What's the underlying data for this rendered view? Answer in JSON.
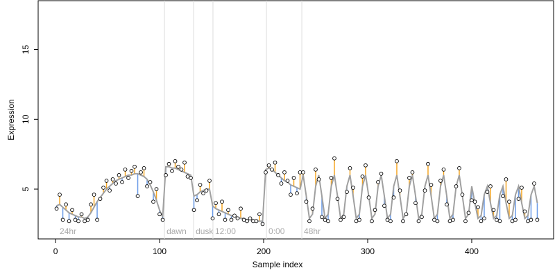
{
  "chart_data": {
    "type": "scatter",
    "xlabel": "Sample index",
    "ylabel": "Expression",
    "xlim": [
      -16.7,
      478.7
    ],
    "ylim": [
      1.43,
      18.5
    ],
    "xticks": [
      0,
      100,
      200,
      300,
      400
    ],
    "yticks": [
      5,
      10,
      15
    ],
    "annotations": [
      {
        "x": 2,
        "label": "24hr",
        "line": false
      },
      {
        "x": 104.7,
        "label": "dawn",
        "line": true
      },
      {
        "x": 132.7,
        "label": "dusk",
        "line": true
      },
      {
        "x": 151.3,
        "label": "12:00",
        "line": true
      },
      {
        "x": 202.7,
        "label": "0:00",
        "line": true
      },
      {
        "x": 236.7,
        "label": "48hr",
        "line": true
      }
    ],
    "residual_colors": [
      "#f5a623",
      "#6a9be8"
    ],
    "x": [
      1,
      4,
      7,
      10,
      13,
      16,
      19,
      22,
      25,
      28,
      31,
      34,
      37,
      40,
      43,
      46,
      49,
      52,
      55,
      58,
      61,
      64,
      67,
      70,
      73,
      76,
      79,
      82,
      85,
      88,
      91,
      94,
      97,
      100,
      103,
      106,
      109,
      112,
      115,
      118,
      121,
      124,
      127,
      130,
      133,
      136,
      139,
      142,
      145,
      148,
      151,
      154,
      157,
      160,
      163,
      166,
      169,
      172,
      175,
      178,
      181,
      184,
      187,
      190,
      193,
      196,
      199,
      202,
      205,
      208,
      211,
      214,
      217,
      220,
      223,
      226,
      229,
      232,
      235,
      238,
      241,
      244,
      247,
      250,
      253,
      256,
      259,
      262,
      265,
      268,
      271,
      274,
      277,
      280,
      283,
      286,
      289,
      292,
      295,
      298,
      301,
      304,
      307,
      310,
      313,
      316,
      319,
      322,
      325,
      328,
      331,
      334,
      337,
      340,
      343,
      346,
      349,
      352,
      355,
      358,
      361,
      364,
      367,
      370,
      373,
      376,
      379,
      382,
      385,
      388,
      391,
      394,
      397,
      400,
      403,
      406,
      409,
      412,
      415,
      418,
      421,
      424,
      427,
      430,
      433,
      436,
      439,
      442,
      445,
      448,
      451,
      454,
      457,
      460,
      463
    ],
    "fit": {
      "color": "#a0a0a0",
      "values": [
        3.8,
        3.9,
        3.7,
        3.5,
        3.3,
        3.2,
        3.1,
        3.0,
        3.0,
        2.9,
        3.0,
        3.3,
        3.7,
        4.1,
        4.4,
        4.7,
        5.0,
        5.2,
        5.4,
        5.6,
        5.7,
        5.8,
        5.9,
        6.0,
        6.0,
        6.1,
        6.1,
        6.0,
        5.9,
        5.7,
        5.3,
        4.8,
        4.2,
        3.5,
        3.0,
        6.6,
        6.6,
        6.5,
        6.5,
        6.4,
        6.3,
        6.2,
        6.1,
        6.0,
        4.5,
        4.6,
        4.8,
        4.9,
        5.0,
        5.0,
        3.8,
        3.6,
        3.5,
        3.4,
        3.3,
        3.2,
        3.1,
        3.0,
        3.0,
        2.9,
        2.9,
        2.8,
        2.8,
        2.8,
        2.7,
        2.7,
        2.7,
        6.4,
        6.5,
        6.4,
        6.2,
        6.0,
        5.8,
        5.6,
        5.5,
        5.3,
        5.2,
        5.1,
        5.0,
        6.0,
        4.5,
        2.9,
        3.2,
        5.2,
        6.0,
        4.5,
        2.9,
        3.2,
        5.2,
        6.0,
        4.5,
        2.9,
        3.2,
        5.2,
        6.0,
        4.5,
        2.9,
        3.2,
        5.2,
        6.0,
        4.5,
        2.9,
        3.2,
        5.2,
        6.0,
        4.5,
        2.9,
        3.2,
        5.2,
        6.0,
        4.5,
        2.9,
        3.2,
        5.2,
        6.0,
        4.5,
        2.9,
        3.2,
        5.2,
        6.0,
        4.5,
        2.9,
        3.2,
        5.2,
        6.0,
        4.5,
        2.9,
        3.2,
        5.2,
        6.0,
        4.5,
        2.9,
        3.2,
        5.2,
        4.0,
        2.9,
        3.1,
        4.6,
        5.2,
        4.0,
        2.9,
        3.1,
        4.6,
        5.2,
        4.0,
        2.9,
        3.1,
        4.6,
        5.2,
        4.0,
        2.9,
        3.1,
        4.6,
        5.2,
        4.0
      ]
    },
    "observed": {
      "values": [
        3.6,
        4.6,
        2.8,
        3.9,
        2.7,
        3.5,
        2.8,
        2.7,
        3.2,
        2.7,
        2.8,
        3.9,
        4.6,
        2.8,
        4.3,
        5.1,
        5.6,
        4.9,
        5.7,
        5.4,
        6.0,
        5.5,
        6.4,
        5.8,
        6.3,
        6.6,
        4.5,
        6.2,
        6.5,
        5.2,
        5.5,
        4.1,
        5.0,
        3.2,
        2.8,
        6.0,
        6.8,
        6.3,
        7.0,
        6.6,
        6.4,
        6.9,
        5.9,
        5.8,
        3.5,
        4.2,
        5.3,
        4.7,
        4.9,
        5.6,
        2.9,
        4.0,
        3.2,
        4.1,
        2.8,
        3.5,
        2.8,
        3.1,
        2.9,
        3.6,
        2.8,
        2.7,
        2.9,
        2.7,
        2.7,
        3.2,
        2.5,
        6.2,
        6.7,
        6.4,
        6.9,
        6.0,
        5.4,
        6.2,
        5.6,
        4.6,
        5.8,
        4.7,
        6.2,
        6.2,
        4.1,
        2.7,
        3.6,
        6.4,
        5.7,
        3.0,
        2.8,
        2.7,
        5.8,
        7.2,
        4.3,
        2.8,
        3.0,
        4.8,
        6.5,
        5.1,
        2.7,
        2.8,
        5.9,
        6.7,
        4.4,
        2.7,
        3.5,
        5.5,
        6.1,
        3.8,
        2.8,
        2.7,
        4.4,
        7.0,
        4.9,
        2.7,
        3.2,
        5.8,
        6.2,
        4.0,
        2.7,
        3.0,
        4.9,
        6.8,
        5.3,
        2.8,
        2.7,
        5.6,
        6.4,
        3.9,
        2.7,
        2.8,
        5.2,
        6.5,
        4.6,
        2.7,
        3.3,
        4.2,
        4.1,
        3.7,
        2.7,
        2.9,
        4.8,
        5.2,
        3.5,
        2.8,
        2.7,
        4.5,
        5.7,
        4.1,
        2.7,
        2.8,
        4.3,
        5.1,
        3.4,
        2.7,
        2.8,
        5.4,
        2.8
      ]
    }
  }
}
